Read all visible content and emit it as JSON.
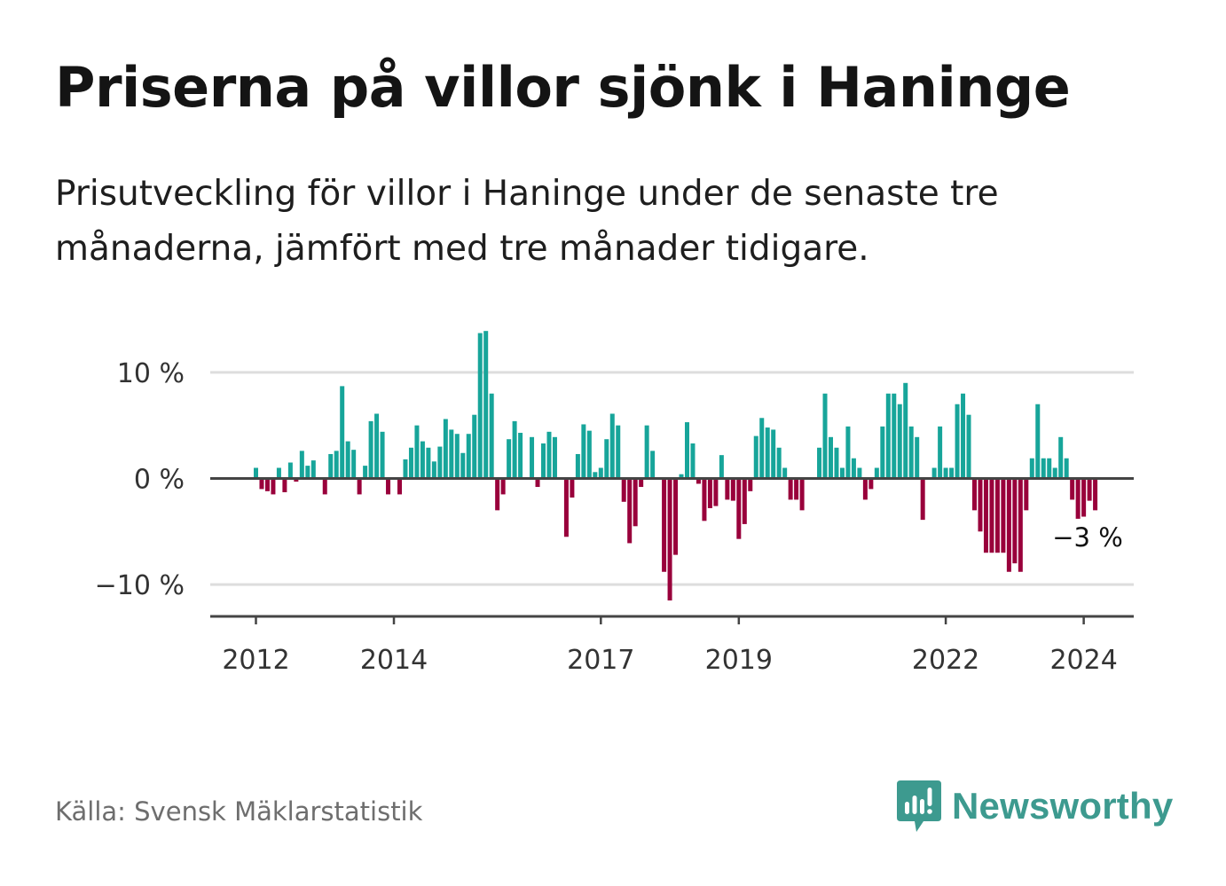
{
  "title": "Priserna på villor sjönk i Haninge",
  "subtitle": "Prisutveckling för villor i Haninge under de senaste tre månaderna, jämfört med tre månader tidigare.",
  "source": "Källa: Svensk Mäklarstatistik",
  "brand": "Newsworthy",
  "colors": {
    "positive": "#17a59a",
    "negative": "#99003b",
    "brand": "#3d9a8f",
    "grid": "#dddddd",
    "axis": "#444444"
  },
  "chart_data": {
    "type": "bar",
    "title": "Priserna på villor sjönk i Haninge",
    "xlabel": "",
    "ylabel": "",
    "ylim": [
      -13,
      14.5
    ],
    "y_ticks": [
      10,
      0,
      -10
    ],
    "y_tick_labels": [
      "10 %",
      "0 %",
      "−10 %"
    ],
    "x_ticks": [
      {
        "label": "2012",
        "index": 0
      },
      {
        "label": "2014",
        "index": 24
      },
      {
        "label": "2017",
        "index": 60
      },
      {
        "label": "2019",
        "index": 84
      },
      {
        "label": "2022",
        "index": 120
      },
      {
        "label": "2024",
        "index": 144
      }
    ],
    "last_value_label": "−3 %",
    "series": [
      {
        "name": "Prisutveckling",
        "start": "2012-01",
        "frequency": "monthly",
        "values": [
          1.0,
          -1.0,
          -1.2,
          -1.5,
          1.0,
          -1.3,
          1.5,
          -0.3,
          2.6,
          1.2,
          1.7,
          0,
          -1.5,
          2.3,
          2.6,
          8.7,
          3.5,
          2.7,
          -1.5,
          1.2,
          5.4,
          6.1,
          4.4,
          -1.5,
          0,
          -1.5,
          1.8,
          2.9,
          5.0,
          3.5,
          2.9,
          1.6,
          3.0,
          5.6,
          4.6,
          4.2,
          2.4,
          4.2,
          6.0,
          13.7,
          13.9,
          8.0,
          -3.0,
          -1.5,
          3.7,
          5.4,
          4.3,
          0,
          3.9,
          -0.8,
          3.3,
          4.4,
          3.9,
          0,
          -5.5,
          -1.8,
          2.3,
          5.1,
          4.5,
          0.6,
          1.0,
          3.7,
          6.1,
          5.0,
          -2.2,
          -6.1,
          -4.5,
          -0.8,
          5.0,
          2.6,
          0,
          -8.8,
          -11.5,
          -7.2,
          0.4,
          5.3,
          3.3,
          -0.5,
          -4.0,
          -2.8,
          -2.6,
          2.2,
          -2.0,
          -2.1,
          -5.7,
          -4.3,
          -1.2,
          4.0,
          5.7,
          4.8,
          4.6,
          2.9,
          1.0,
          -2.0,
          -2.0,
          -3.0,
          0,
          0,
          2.9,
          8.0,
          3.9,
          2.9,
          1.0,
          4.9,
          1.9,
          1.0,
          -2.0,
          -1.0,
          1.0,
          4.9,
          8.0,
          8.0,
          7.0,
          9.0,
          4.9,
          3.9,
          -3.9,
          0,
          1.0,
          4.9,
          1.0,
          1.0,
          7.0,
          8.0,
          6.0,
          -3.0,
          -5.0,
          -7.0,
          -7.0,
          -7.0,
          -7.0,
          -8.8,
          -8.0,
          -8.8,
          -3.0,
          1.9,
          7.0,
          1.9,
          1.9,
          1.0,
          3.9,
          1.9,
          -2.0,
          -3.8,
          -3.6,
          -2.1,
          -3.0
        ]
      }
    ]
  }
}
